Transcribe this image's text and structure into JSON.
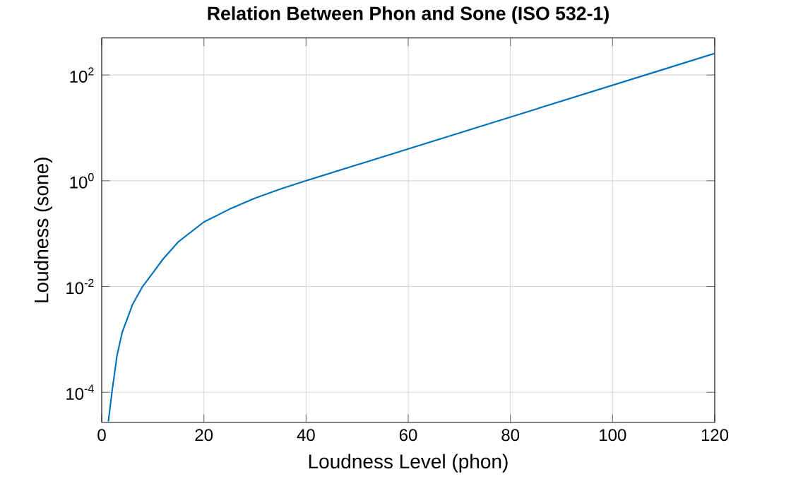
{
  "chart_data": {
    "type": "line",
    "title": "Relation Between Phon and Sone (ISO 532-1)",
    "xlabel": "Loudness Level (phon)",
    "ylabel": "Loudness (sone)",
    "x": [
      1.3,
      2,
      3,
      4,
      6,
      8,
      10,
      12,
      15,
      20,
      25,
      30,
      35,
      40,
      50,
      60,
      70,
      80,
      90,
      100,
      110,
      120
    ],
    "series": [
      {
        "color": "#0072bd",
        "values": [
          2.8e-05,
          0.0001,
          0.0005,
          0.00135,
          0.0045,
          0.01,
          0.018,
          0.033,
          0.07,
          0.166,
          0.29,
          0.47,
          0.7,
          1,
          2,
          4,
          8,
          16,
          32,
          64,
          128,
          256
        ]
      }
    ],
    "log": "y",
    "grid": true,
    "marker": "none",
    "line_style": "solid",
    "xlim": [
      0,
      120
    ],
    "xticks": [
      0,
      20,
      40,
      60,
      80,
      100,
      120
    ],
    "ylim": [
      2.7e-05,
      500
    ],
    "yticks": [
      {
        "value": 0.0001,
        "label": "10$^{-4}$"
      },
      {
        "value": 0.01,
        "label": "10$^{-2}$"
      },
      {
        "value": 1,
        "label": "10$^{0}$"
      },
      {
        "value": 100,
        "label": "10$^{2}$"
      }
    ]
  }
}
